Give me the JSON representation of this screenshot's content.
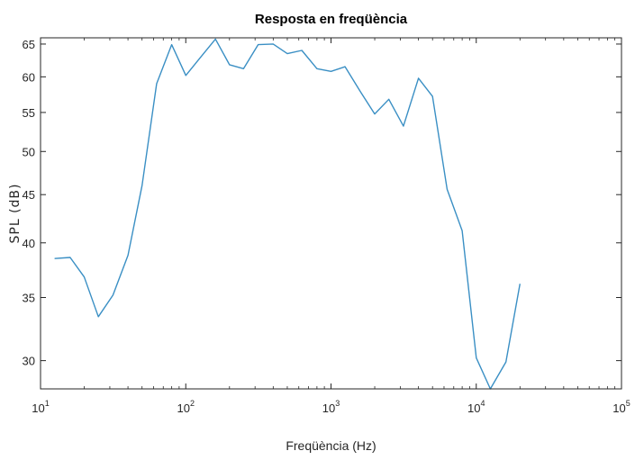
{
  "chart_data": {
    "type": "line",
    "title": "Resposta en freqüència",
    "xlabel": "Freqüència (Hz)",
    "ylabel": "SPL (dB)",
    "xscale": "log",
    "yscale": "log",
    "xlim": [
      10,
      100000
    ],
    "ylim": [
      28,
      66
    ],
    "x_ticks": [
      {
        "base": "10",
        "exp": "1",
        "value": 10
      },
      {
        "base": "10",
        "exp": "2",
        "value": 100
      },
      {
        "base": "10",
        "exp": "3",
        "value": 1000
      },
      {
        "base": "10",
        "exp": "4",
        "value": 10000
      },
      {
        "base": "10",
        "exp": "5",
        "value": 100000
      }
    ],
    "y_ticks": [
      {
        "label": "30",
        "value": 30
      },
      {
        "label": "35",
        "value": 35
      },
      {
        "label": "40",
        "value": 40
      },
      {
        "label": "45",
        "value": 45
      },
      {
        "label": "50",
        "value": 50
      },
      {
        "label": "55",
        "value": 55
      },
      {
        "label": "60",
        "value": 60
      },
      {
        "label": "65",
        "value": 65
      }
    ],
    "grid": false,
    "line_color": "#3a8fc4",
    "series": [
      {
        "x": [
          12.5,
          16,
          20,
          25,
          31.5,
          40,
          50,
          63,
          80,
          100,
          125,
          160,
          200,
          250,
          315,
          400,
          500,
          630,
          800,
          1000,
          1250,
          1600,
          2000,
          2500,
          3150,
          4000,
          5000,
          6300,
          8000,
          10000,
          12500,
          16000,
          20000
        ],
        "y": [
          38.5,
          38.6,
          36.8,
          33.4,
          35.2,
          38.8,
          46.0,
          59.0,
          64.9,
          60.2,
          62.8,
          65.8,
          61.8,
          61.2,
          64.9,
          65.0,
          63.5,
          64.0,
          61.2,
          60.8,
          61.5,
          57.8,
          54.8,
          56.8,
          53.2,
          59.8,
          57.2,
          45.6,
          41.2,
          30.2,
          28.0,
          29.9,
          36.2
        ]
      }
    ]
  }
}
